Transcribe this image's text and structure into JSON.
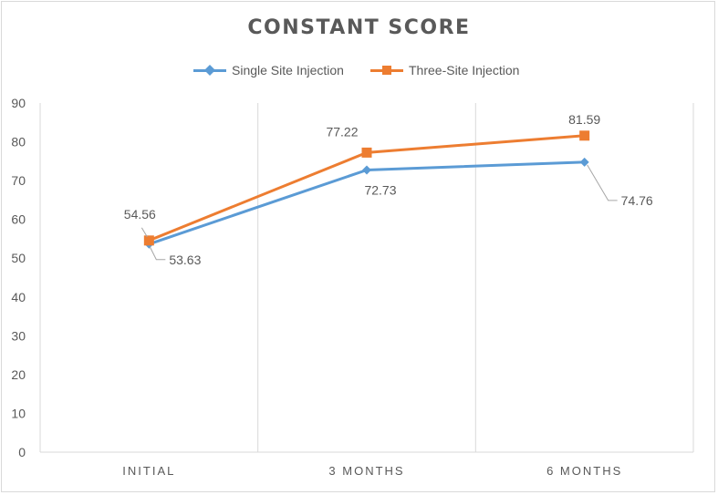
{
  "chart_data": {
    "type": "line",
    "title": "CONSTANT SCORE",
    "categories": [
      "INITIAL",
      "3 MONTHS",
      "6 MONTHS"
    ],
    "ylim": [
      0,
      90
    ],
    "yticks": [
      "0",
      "10",
      "20",
      "30",
      "40",
      "50",
      "60",
      "70",
      "80",
      "90"
    ],
    "xlabel": "",
    "ylabel": "",
    "grid": "vertical",
    "legend_position": "top",
    "series": [
      {
        "name": "Single Site Injection",
        "values": [
          53.63,
          72.73,
          74.76
        ],
        "labels": [
          "53.63",
          "72.73",
          "74.76"
        ],
        "color": "#5b9bd5",
        "marker": "diamond"
      },
      {
        "name": "Three-Site Injection",
        "values": [
          54.56,
          77.22,
          81.59
        ],
        "labels": [
          "54.56",
          "77.22",
          "81.59"
        ],
        "color": "#ed7d31",
        "marker": "square"
      }
    ]
  }
}
